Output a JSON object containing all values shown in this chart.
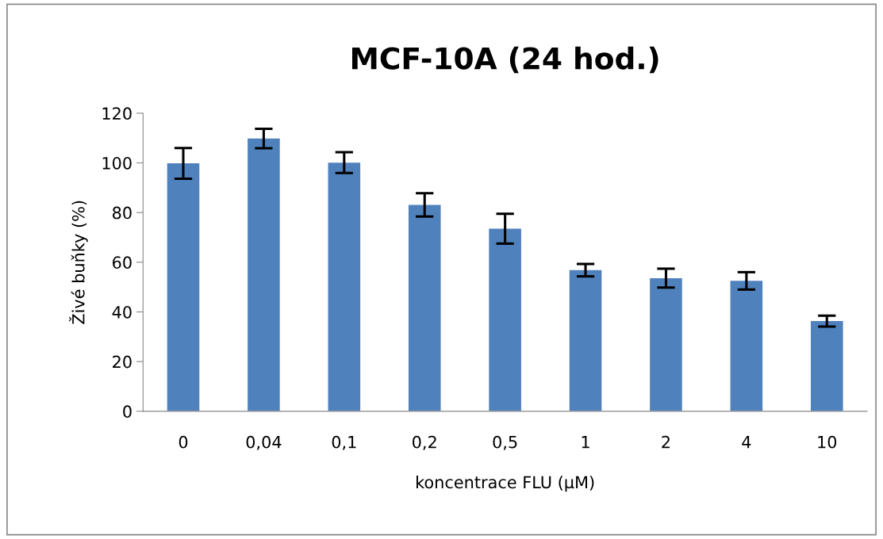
{
  "chart_data": {
    "type": "bar",
    "title": "MCF-10A (24 hod.)",
    "xlabel": "koncentrace FLU (µM)",
    "ylabel": "Živé buňky (%)",
    "categories": [
      "0",
      "0,04",
      "0,1",
      "0,2",
      "0,5",
      "1",
      "2",
      "4",
      "10"
    ],
    "values": [
      99.8,
      109.8,
      100.1,
      83.1,
      73.5,
      56.8,
      53.6,
      52.5,
      36.3
    ],
    "errors": [
      6.2,
      3.9,
      4.2,
      4.7,
      6.0,
      2.5,
      3.8,
      3.5,
      2.2
    ],
    "color": "#4f81bd",
    "ylim": [
      0,
      120
    ],
    "yticks": [
      0,
      20,
      40,
      60,
      80,
      100,
      120
    ],
    "grid": false,
    "legend": false
  }
}
